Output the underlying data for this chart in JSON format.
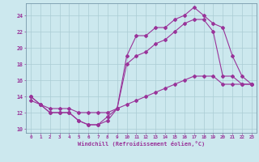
{
  "title": "",
  "xlabel": "Windchill (Refroidissement éolien,°C)",
  "bg_color": "#cce8ee",
  "line_color": "#993399",
  "grid_color": "#aaccd4",
  "xlim": [
    -0.5,
    23.5
  ],
  "ylim": [
    9.5,
    25.5
  ],
  "yticks": [
    10,
    12,
    14,
    16,
    18,
    20,
    22,
    24
  ],
  "xticks": [
    0,
    1,
    2,
    3,
    4,
    5,
    6,
    7,
    8,
    9,
    10,
    11,
    12,
    13,
    14,
    15,
    16,
    17,
    18,
    19,
    20,
    21,
    22,
    23
  ],
  "line1_x": [
    0,
    1,
    2,
    3,
    4,
    5,
    6,
    7,
    8,
    9,
    10,
    11,
    12,
    13,
    14,
    15,
    16,
    17,
    18,
    19,
    20,
    21,
    22,
    23
  ],
  "line1_y": [
    14.0,
    13.0,
    12.0,
    12.0,
    12.0,
    11.0,
    10.5,
    10.5,
    11.0,
    12.5,
    19.0,
    21.5,
    21.5,
    22.5,
    22.5,
    23.5,
    24.0,
    25.0,
    24.0,
    23.0,
    22.5,
    19.0,
    16.5,
    15.5
  ],
  "line2_x": [
    0,
    1,
    2,
    3,
    4,
    5,
    6,
    7,
    8,
    9,
    10,
    11,
    12,
    13,
    14,
    15,
    16,
    17,
    18,
    19,
    20,
    21,
    22,
    23
  ],
  "line2_y": [
    14.0,
    13.0,
    12.0,
    12.0,
    12.0,
    11.0,
    10.5,
    10.5,
    11.5,
    12.5,
    18.0,
    19.0,
    19.5,
    20.5,
    21.0,
    22.0,
    23.0,
    23.5,
    23.5,
    22.0,
    16.5,
    16.5,
    15.5,
    15.5
  ],
  "line3_x": [
    0,
    1,
    2,
    3,
    4,
    5,
    6,
    7,
    8,
    9,
    10,
    11,
    12,
    13,
    14,
    15,
    16,
    17,
    18,
    19,
    20,
    21,
    22,
    23
  ],
  "line3_y": [
    13.5,
    13.0,
    12.5,
    12.5,
    12.5,
    12.0,
    12.0,
    12.0,
    12.0,
    12.5,
    13.0,
    13.5,
    14.0,
    14.5,
    15.0,
    15.5,
    16.0,
    16.5,
    16.5,
    16.5,
    15.5,
    15.5,
    15.5,
    15.5
  ]
}
